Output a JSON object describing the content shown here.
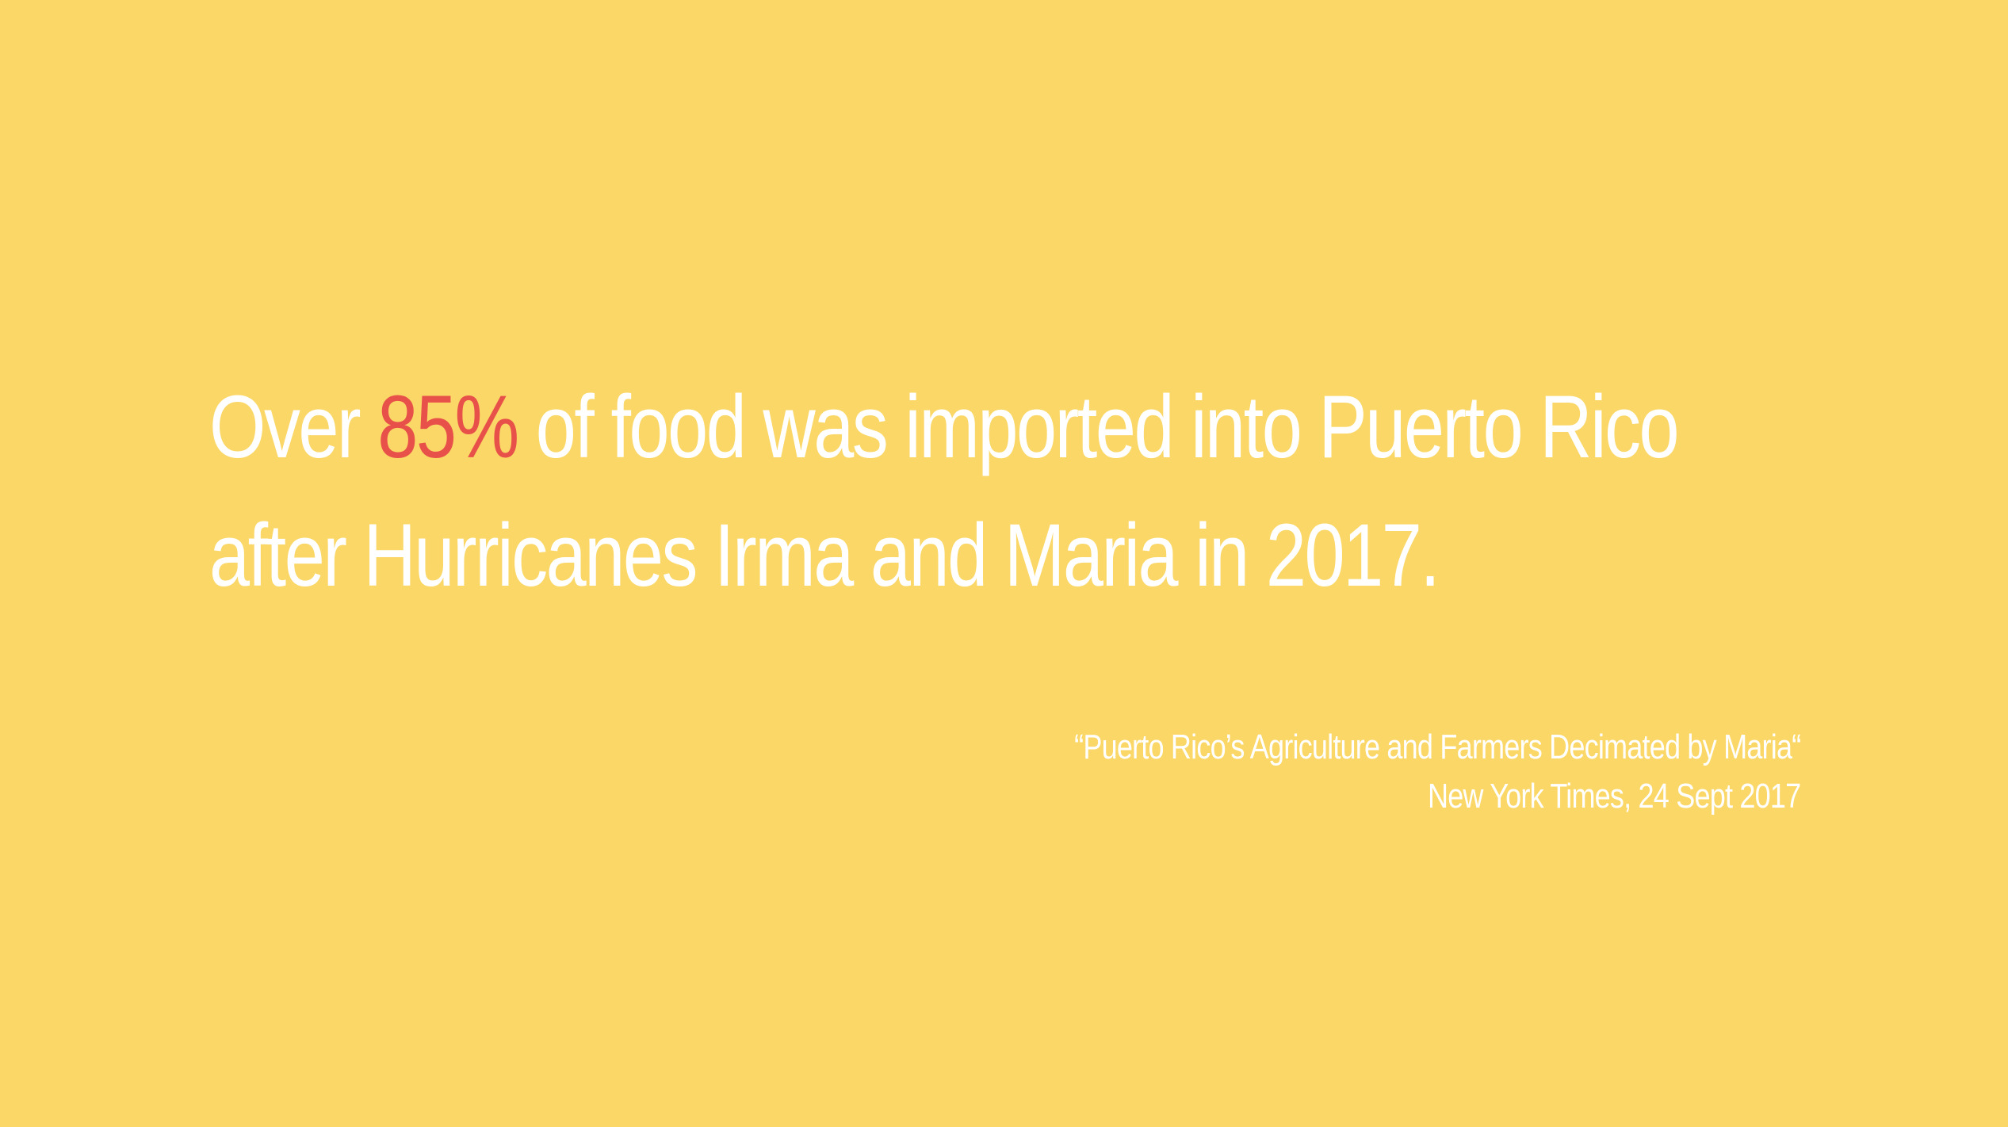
{
  "background_color": "#FAD766",
  "accent_color": "#E8514A",
  "text_color": "#FFFFFF",
  "headline": {
    "line1_prefix": "Over ",
    "highlight": "85%",
    "line1_suffix": " of food was imported into Puerto Rico",
    "line2": "after Hurricanes Irma and Maria in 2017."
  },
  "citation": {
    "article_title": "“Puerto Rico’s Agriculture and Farmers Decimated by Maria“",
    "source": "New York Times, 24 Sept 2017"
  }
}
